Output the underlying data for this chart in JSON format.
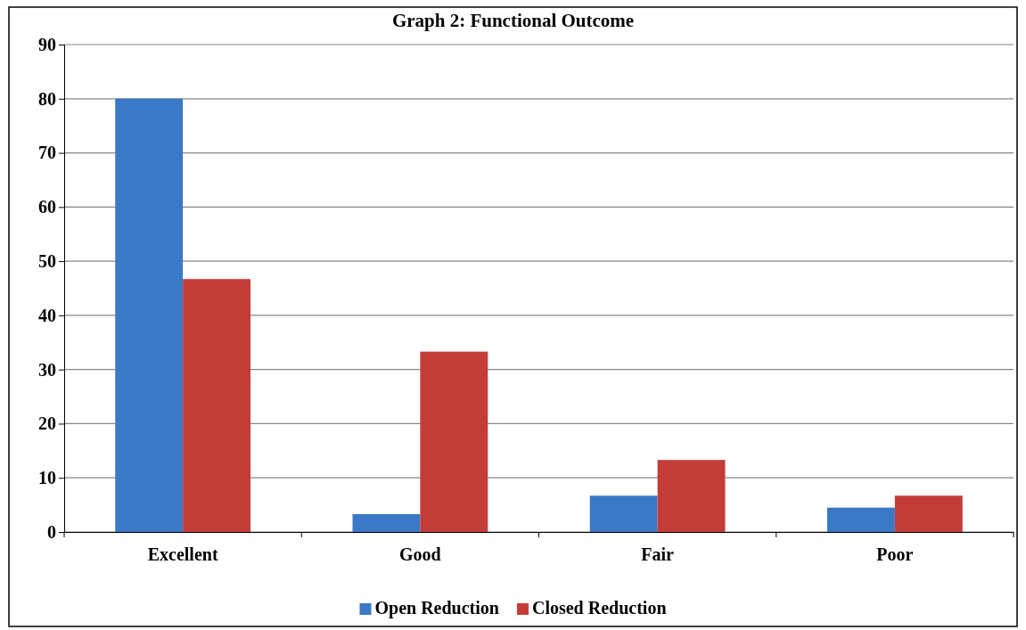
{
  "chart_data": {
    "type": "bar",
    "title": "Graph 2: Functional Outcome",
    "categories": [
      "Excellent",
      "Good",
      "Fair",
      "Poor"
    ],
    "series": [
      {
        "name": "Open Reduction",
        "color": "#3a78c8",
        "values": [
          80,
          3.3,
          6.7,
          4.5
        ]
      },
      {
        "name": "Closed Reduction",
        "color": "#c43c38",
        "values": [
          46.7,
          33.3,
          13.3,
          6.7
        ]
      }
    ],
    "ylim": [
      0,
      90
    ],
    "yticks": [
      0,
      10,
      20,
      30,
      40,
      50,
      60,
      70,
      80,
      90
    ],
    "grid": "y",
    "legend": "bottom"
  }
}
